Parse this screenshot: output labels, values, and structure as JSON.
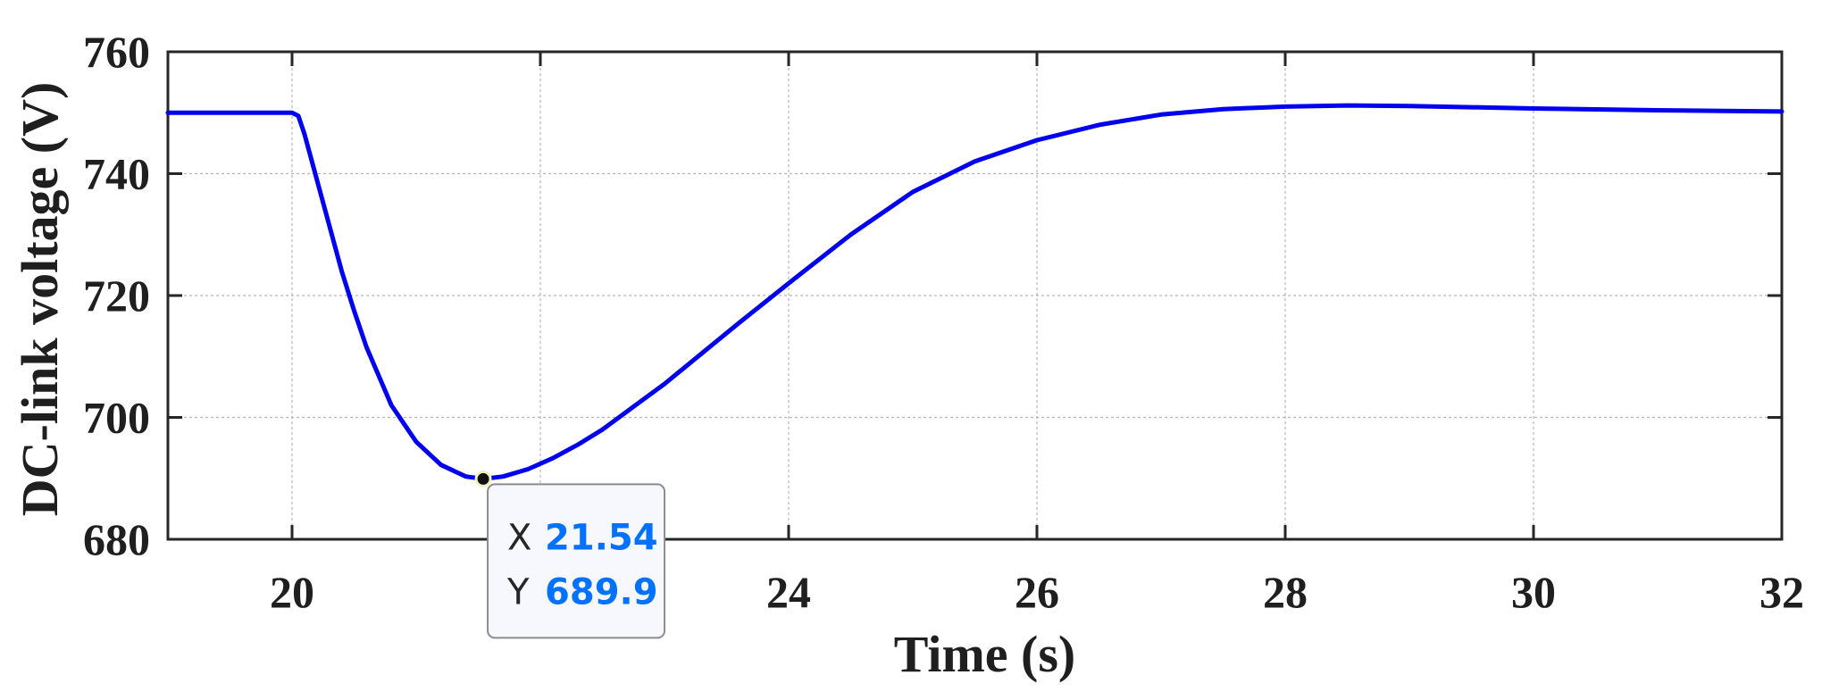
{
  "chart_data": {
    "type": "line",
    "title": "",
    "xlabel": "Time (s)",
    "ylabel": "DC-link voltage (V)",
    "xlim": [
      19,
      32
    ],
    "ylim": [
      680,
      760
    ],
    "xticks": [
      20,
      24,
      26,
      28,
      30,
      32
    ],
    "yticks": [
      680,
      700,
      720,
      740,
      760
    ],
    "grid": true,
    "series": [
      {
        "color": "#0000ee",
        "x": [
          19.0,
          20.0,
          20.05,
          20.1,
          20.2,
          20.3,
          20.4,
          20.5,
          20.6,
          20.8,
          21.0,
          21.2,
          21.4,
          21.54,
          21.7,
          21.9,
          22.1,
          22.3,
          22.5,
          22.8,
          23.0,
          23.3,
          23.6,
          24.0,
          24.5,
          25.0,
          25.5,
          26.0,
          26.5,
          27.0,
          27.5,
          28.0,
          28.5,
          29.0,
          29.5,
          30.0,
          31.0,
          32.0
        ],
        "values": [
          750.0,
          750.0,
          749.5,
          746.5,
          739.0,
          731.5,
          724.0,
          717.5,
          711.5,
          702.0,
          696.0,
          692.2,
          690.3,
          689.9,
          690.3,
          691.5,
          693.3,
          695.5,
          698.0,
          702.5,
          705.5,
          710.5,
          715.5,
          722.0,
          730.0,
          737.0,
          742.0,
          745.5,
          748.0,
          749.7,
          750.6,
          751.0,
          751.2,
          751.1,
          750.9,
          750.7,
          750.4,
          750.2
        ]
      }
    ],
    "datatip": {
      "x_label": "X",
      "x_value": "21.54",
      "y_label": "Y",
      "y_value": "689.9",
      "x": 21.54,
      "y": 689.9,
      "value_color": "#0072ff"
    }
  }
}
